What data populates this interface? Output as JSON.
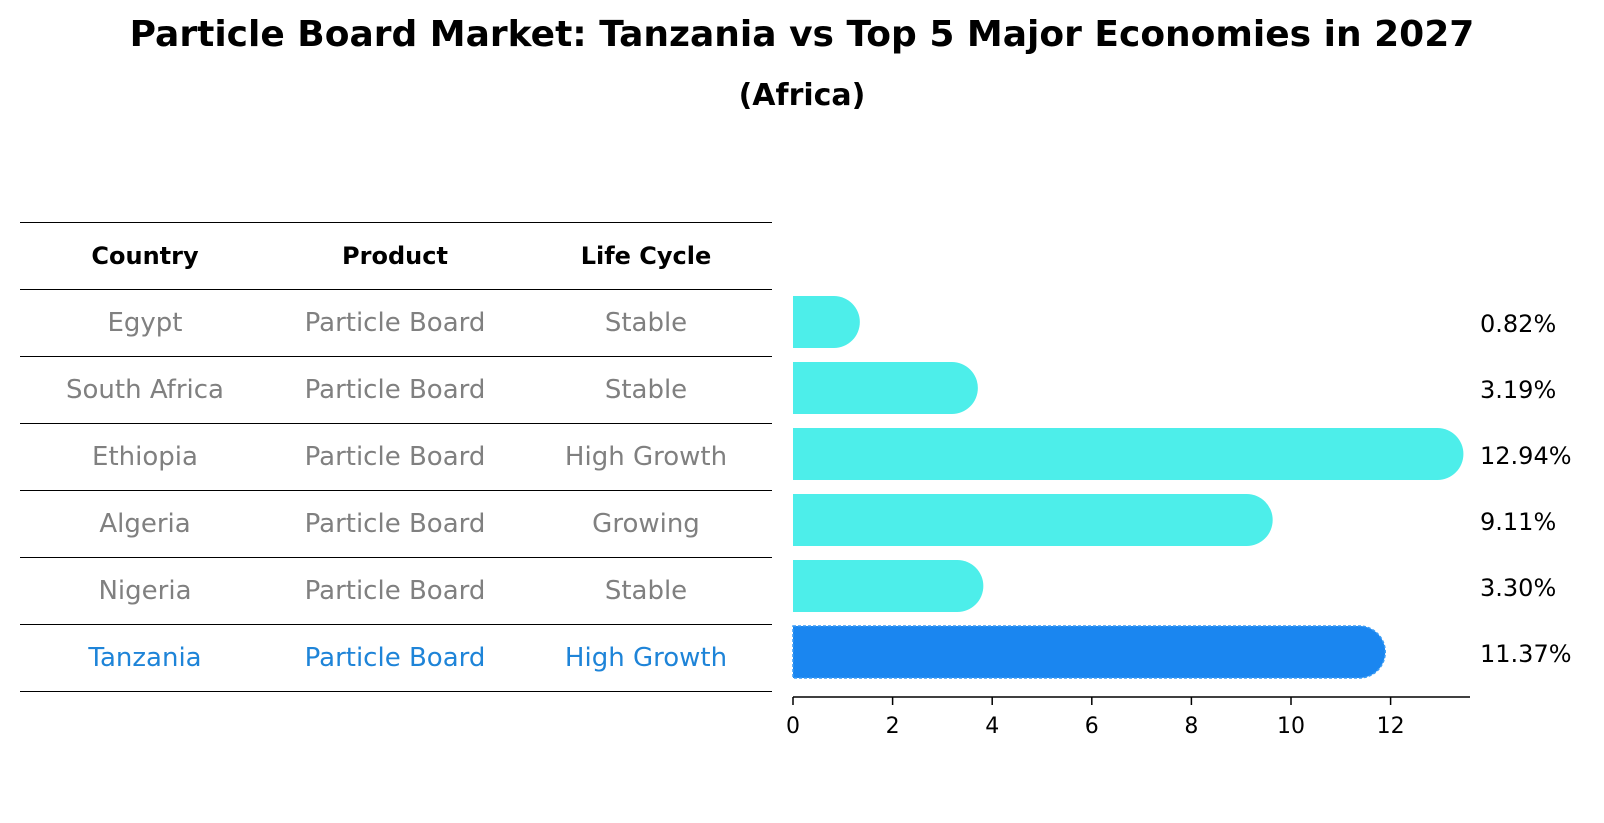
{
  "title": "Particle Board Market: Tanzania vs Top 5 Major Economies in 2027",
  "subtitle": "(Africa)",
  "table": {
    "headers": [
      "Country",
      "Product",
      "Life Cycle"
    ],
    "rows": [
      [
        "Egypt",
        "Particle Board",
        "Stable"
      ],
      [
        "South Africa",
        "Particle Board",
        "Stable"
      ],
      [
        "Ethiopia",
        "Particle Board",
        "High Growth"
      ],
      [
        "Algeria",
        "Particle Board",
        "Growing"
      ],
      [
        "Nigeria",
        "Particle Board",
        "Stable"
      ],
      [
        "Tanzania",
        "Particle Board",
        "High Growth"
      ]
    ]
  },
  "colors": {
    "bar": "#4deeea",
    "highlight": "#1a86f0",
    "highlight_text": "#1e84d8",
    "muted_text": "#808080"
  },
  "chart_data": {
    "type": "bar",
    "orientation": "horizontal",
    "categories": [
      "Egypt",
      "South Africa",
      "Ethiopia",
      "Algeria",
      "Nigeria",
      "Tanzania"
    ],
    "values": [
      0.82,
      3.19,
      12.94,
      9.11,
      3.3,
      11.37
    ],
    "value_labels": [
      "0.82%",
      "3.19%",
      "12.94%",
      "9.11%",
      "3.30%",
      "11.37%"
    ],
    "highlight": "Tanzania",
    "xlim": [
      0,
      13.6
    ],
    "xticks": [
      0,
      2,
      4,
      6,
      8,
      10,
      12
    ],
    "xlabel": "",
    "ylabel": "",
    "grid": false
  }
}
